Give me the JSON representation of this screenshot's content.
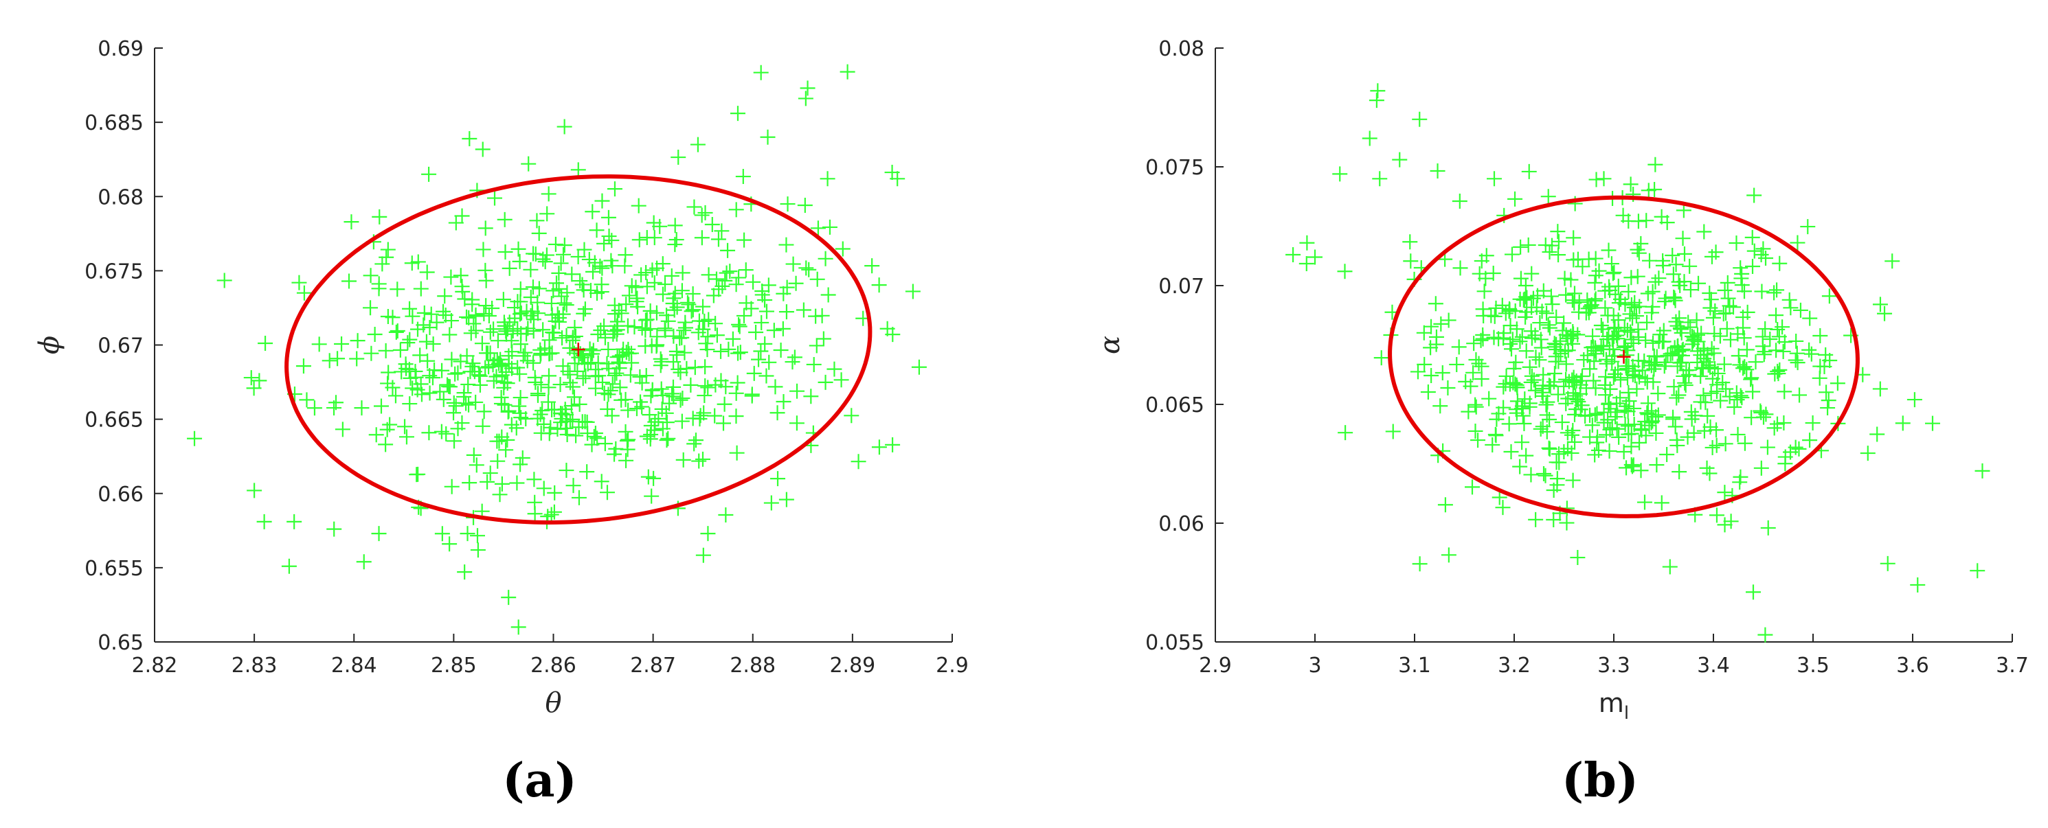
{
  "chart_data": [
    {
      "type": "scatter",
      "panel_label": "(a)",
      "xlabel": "θ",
      "ylabel": "ϕ",
      "xlim": [
        2.82,
        2.9
      ],
      "ylim": [
        0.65,
        0.69
      ],
      "xticks": [
        2.82,
        2.83,
        2.84,
        2.85,
        2.86,
        2.87,
        2.88,
        2.89,
        2.9
      ],
      "xtick_labels": [
        "2.82",
        "2.83",
        "2.84",
        "2.85",
        "2.86",
        "2.87",
        "2.88",
        "2.89",
        "2.9"
      ],
      "yticks": [
        0.65,
        0.655,
        0.66,
        0.665,
        0.67,
        0.675,
        0.68,
        0.685,
        0.69
      ],
      "ytick_labels": [
        "0.65",
        "0.655",
        "0.66",
        "0.665",
        "0.67",
        "0.675",
        "0.68",
        "0.685",
        "0.69"
      ],
      "grid": false,
      "marker": "plus",
      "marker_color": "#33ff33",
      "ellipse_color": "#e60000",
      "center_color": "#e60000",
      "center": [
        2.8625,
        0.6697
      ],
      "ellipse": {
        "cx": 2.8625,
        "cy": 0.6697,
        "semi_major": 0.0295,
        "semi_minor": 0.0115,
        "angle_deg": 11.7
      },
      "sample_cloud": {
        "n": 720,
        "sd_major": 0.0123,
        "sd_minor": 0.00475,
        "seed": 11
      },
      "points": [
        [
          2.824,
          0.6637
        ],
        [
          2.8297,
          0.6678
        ],
        [
          2.83,
          0.6602
        ],
        [
          2.8305,
          0.6676
        ],
        [
          2.831,
          0.6581
        ],
        [
          2.8335,
          0.6551
        ],
        [
          2.834,
          0.6581
        ],
        [
          2.8345,
          0.6742
        ],
        [
          2.838,
          0.6576
        ],
        [
          2.841,
          0.6554
        ],
        [
          2.8425,
          0.6573
        ],
        [
          2.8475,
          0.6815
        ],
        [
          2.8555,
          0.653
        ],
        [
          2.8565,
          0.651
        ],
        [
          2.8575,
          0.6822
        ],
        [
          2.8625,
          0.6818
        ],
        [
          2.8745,
          0.6835
        ],
        [
          2.8785,
          0.6856
        ],
        [
          2.8815,
          0.684
        ],
        [
          2.8855,
          0.6873
        ],
        [
          2.8895,
          0.6884
        ],
        [
          2.8945,
          0.6812
        ],
        [
          2.8935,
          0.6711
        ],
        [
          2.8825,
          0.661
        ],
        [
          2.8755,
          0.6573
        ],
        [
          2.8725,
          0.659
        ],
        [
          2.8425,
          0.6738
        ],
        [
          2.8395,
          0.6743
        ],
        [
          2.8875,
          0.6812
        ],
        [
          2.8835,
          0.6795
        ]
      ]
    },
    {
      "type": "scatter",
      "panel_label": "(b)",
      "xlabel": "m",
      "xlabel_sub": "l",
      "ylabel": "α",
      "xlim": [
        2.9,
        3.7
      ],
      "ylim": [
        0.055,
        0.08
      ],
      "xticks": [
        2.9,
        3.0,
        3.1,
        3.2,
        3.3,
        3.4,
        3.5,
        3.6,
        3.7
      ],
      "xtick_labels": [
        "2.9",
        "3",
        "3.1",
        "3.2",
        "3.3",
        "3.4",
        "3.5",
        "3.6",
        "3.7"
      ],
      "yticks": [
        0.055,
        0.06,
        0.065,
        0.07,
        0.075,
        0.08
      ],
      "ytick_labels": [
        "0.055",
        "0.06",
        "0.065",
        "0.07",
        "0.075",
        "0.08"
      ],
      "grid": false,
      "marker": "plus",
      "marker_color": "#33ff33",
      "ellipse_color": "#e60000",
      "center_color": "#e60000",
      "center": [
        3.31,
        0.067
      ],
      "ellipse": {
        "cx": 3.31,
        "cy": 0.067,
        "semi_major": 0.235,
        "semi_minor": 0.0067,
        "angle_deg": -6.0
      },
      "sample_cloud": {
        "n": 720,
        "sd_major": 0.098,
        "sd_minor": 0.0028,
        "seed": 29
      },
      "points": [
        [
          2.978,
          0.0713
        ],
        [
          2.992,
          0.0718
        ],
        [
          3.0,
          0.0712
        ],
        [
          3.025,
          0.0747
        ],
        [
          3.03,
          0.0706
        ],
        [
          3.055,
          0.0762
        ],
        [
          3.062,
          0.0778
        ],
        [
          3.063,
          0.0782
        ],
        [
          3.065,
          0.0745
        ],
        [
          3.085,
          0.0753
        ],
        [
          3.105,
          0.077
        ],
        [
          3.44,
          0.0571
        ],
        [
          3.452,
          0.0553
        ],
        [
          3.575,
          0.0583
        ],
        [
          3.605,
          0.0574
        ],
        [
          3.665,
          0.058
        ],
        [
          3.67,
          0.0622
        ],
        [
          3.62,
          0.0642
        ],
        [
          3.602,
          0.0652
        ],
        [
          3.538,
          0.0679
        ],
        [
          3.448,
          0.0713
        ],
        [
          3.29,
          0.0745
        ],
        [
          3.215,
          0.0748
        ],
        [
          3.18,
          0.0745
        ],
        [
          3.455,
          0.0598
        ]
      ]
    }
  ]
}
